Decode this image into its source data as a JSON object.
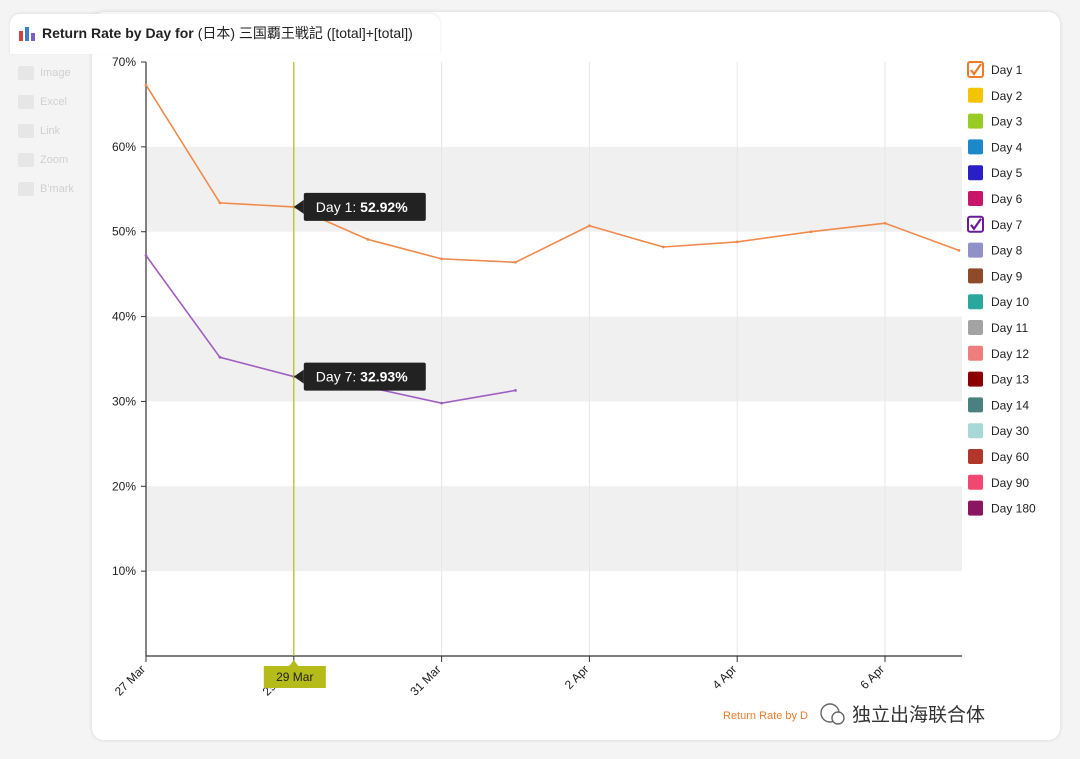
{
  "header": {
    "title_prefix": "Return Rate by Day for",
    "title_suffix": "(日本) 三国覇王戦記 ([total]+[total])"
  },
  "toolbar": [
    {
      "label": "Image",
      "icon": "image-icon"
    },
    {
      "label": "Excel",
      "icon": "excel-icon"
    },
    {
      "label": "Link",
      "icon": "link-icon"
    },
    {
      "label": "Zoom",
      "icon": "zoom-icon"
    },
    {
      "label": "B'mark",
      "icon": "bookmark-icon"
    }
  ],
  "chart_data": {
    "type": "line",
    "title": "Return Rate by Day for (日本) 三国覇王戦記 ([total]+[total])",
    "ylim": [
      0,
      70
    ],
    "yticks": [
      "10%",
      "20%",
      "30%",
      "40%",
      "50%",
      "60%",
      "70%"
    ],
    "x_dates": [
      "2017-03-27",
      "2017-03-28",
      "2017-03-29",
      "2017-03-30",
      "2017-03-31",
      "2017-04-01",
      "2017-04-02",
      "2017-04-03",
      "2017-04-04",
      "2017-04-05",
      "2017-04-06",
      "2017-04-07"
    ],
    "xtick_labels": [
      {
        "label": "27 Mar",
        "date": "2017-03-27"
      },
      {
        "label": "29 Mar",
        "date": "2017-03-29"
      },
      {
        "label": "31 Mar",
        "date": "2017-03-31"
      },
      {
        "label": "2 Apr",
        "date": "2017-04-02"
      },
      {
        "label": "4 Apr",
        "date": "2017-04-04"
      },
      {
        "label": "6 Apr",
        "date": "2017-04-06"
      }
    ],
    "grid": true,
    "legend_position": "right",
    "series": [
      {
        "name": "Day 1",
        "color": "#f08a4b",
        "visible": true,
        "values": [
          67.3,
          53.4,
          52.92,
          49.1,
          46.8,
          46.4,
          50.7,
          48.2,
          48.8,
          50.0,
          51.0,
          47.8
        ]
      },
      {
        "name": "Day 7",
        "color": "#a05fc0",
        "visible": true,
        "values": [
          47.2,
          35.2,
          32.93,
          31.7,
          29.8,
          31.3
        ]
      }
    ],
    "tooltips": [
      {
        "series": "Day 1",
        "label": "Day 1: ",
        "value": "52.92%"
      },
      {
        "series": "Day 7",
        "label": "Day 7: ",
        "value": "32.93%"
      }
    ],
    "crosshair": {
      "date": "2017-03-29",
      "label": "29 Mar"
    },
    "legend": [
      {
        "name": "Day 1",
        "color": "#f07a2a",
        "checked": true
      },
      {
        "name": "Day 2",
        "color": "#f5c400",
        "checked": false
      },
      {
        "name": "Day 3",
        "color": "#99cc22",
        "checked": false
      },
      {
        "name": "Day 4",
        "color": "#1c87c9",
        "checked": false
      },
      {
        "name": "Day 5",
        "color": "#2a1fc7",
        "checked": false
      },
      {
        "name": "Day 6",
        "color": "#c8156a",
        "checked": false
      },
      {
        "name": "Day 7",
        "color": "#6a1b9a",
        "checked": true
      },
      {
        "name": "Day 8",
        "color": "#9191c9",
        "checked": false
      },
      {
        "name": "Day 9",
        "color": "#8f4a2a",
        "checked": false
      },
      {
        "name": "Day 10",
        "color": "#2aa89e",
        "checked": false
      },
      {
        "name": "Day 11",
        "color": "#a3a3a3",
        "checked": false
      },
      {
        "name": "Day 12",
        "color": "#ee7e7e",
        "checked": false
      },
      {
        "name": "Day 13",
        "color": "#8b0000",
        "checked": false
      },
      {
        "name": "Day 14",
        "color": "#4a8080",
        "checked": false
      },
      {
        "name": "Day 30",
        "color": "#a8d8d8",
        "checked": false
      },
      {
        "name": "Day 60",
        "color": "#b3362d",
        "checked": false
      },
      {
        "name": "Day 90",
        "color": "#f04870",
        "checked": false
      },
      {
        "name": "Day 180",
        "color": "#8b1560",
        "checked": false
      }
    ],
    "footer_link": "Return Rate by D"
  },
  "watermark": "独立出海联合体"
}
